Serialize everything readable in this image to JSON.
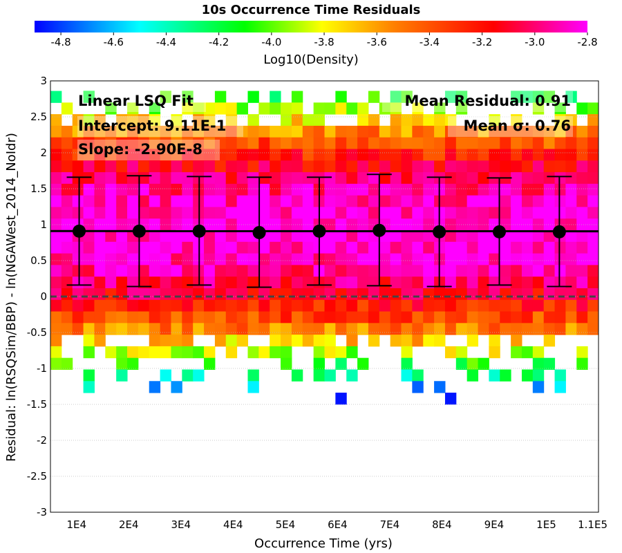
{
  "chart_data": {
    "type": "heatmap",
    "title": "10s Occurrence Time Residuals",
    "colorbar": {
      "label": "Log10(Density)",
      "range": [
        -4.9,
        -2.8
      ],
      "ticks": [
        "-4.8",
        "-4.6",
        "-4.4",
        "-4.2",
        "-4.0",
        "-3.8",
        "-3.6",
        "-3.4",
        "-3.2",
        "-3.0",
        "-2.8"
      ],
      "tick_values": [
        -4.8,
        -4.6,
        -4.4,
        -4.2,
        -4.0,
        -3.8,
        -3.6,
        -3.4,
        -3.2,
        -3.0,
        -2.8
      ],
      "colormap": "rainbow-magenta",
      "colors": [
        "#0000ff",
        "#00ffff",
        "#00ff00",
        "#ffff00",
        "#ff8000",
        "#ff0000",
        "#ff00ff"
      ]
    },
    "xlabel": "Occurrence Time (yrs)",
    "ylabel": "Residual: ln(RSQSim/BBP) - ln(NGAWest_2014_NoIdr)",
    "xlim": [
      5000,
      110000
    ],
    "ylim": [
      -3,
      3
    ],
    "x_ticks": [
      "1E4",
      "2E4",
      "3E4",
      "4E4",
      "5E4",
      "6E4",
      "7E4",
      "8E4",
      "9E4",
      "1E5",
      "1.1E5"
    ],
    "x_tick_values": [
      10000,
      20000,
      30000,
      40000,
      50000,
      60000,
      70000,
      80000,
      90000,
      100000,
      110000
    ],
    "y_ticks": [
      "3",
      "2.5",
      "2",
      "1.5",
      "1",
      "0.5",
      "0",
      "-0.5",
      "-1",
      "-1.5",
      "-2",
      "-2.5",
      "-3"
    ],
    "y_tick_values": [
      3,
      2.5,
      2,
      1.5,
      1,
      0.5,
      0,
      -0.5,
      -1,
      -1.5,
      -2,
      -2.5,
      -3
    ],
    "grid": true,
    "bin_means": {
      "x": [
        10500,
        22000,
        33500,
        45000,
        56500,
        68000,
        79500,
        91000,
        102500
      ],
      "mean": [
        0.91,
        0.91,
        0.91,
        0.89,
        0.91,
        0.92,
        0.9,
        0.9,
        0.9
      ],
      "upper": [
        1.66,
        1.68,
        1.67,
        1.66,
        1.66,
        1.7,
        1.66,
        1.65,
        1.67
      ],
      "lower": [
        0.16,
        0.14,
        0.16,
        0.13,
        0.16,
        0.15,
        0.14,
        0.16,
        0.14
      ]
    },
    "fit_line": {
      "intercept": 0.911,
      "slope": -2.9e-08
    },
    "zero_line": 0,
    "heatmap_extent": {
      "y_top": 2.86,
      "y_bottom": -1.66
    },
    "annotations": {
      "fit_label": "Linear LSQ Fit",
      "intercept": "Intercept: 9.11E-1",
      "slope": "Slope: -2.90E-8",
      "mean_residual": "Mean Residual: 0.91",
      "mean_sigma": "Mean σ: 0.76"
    }
  }
}
